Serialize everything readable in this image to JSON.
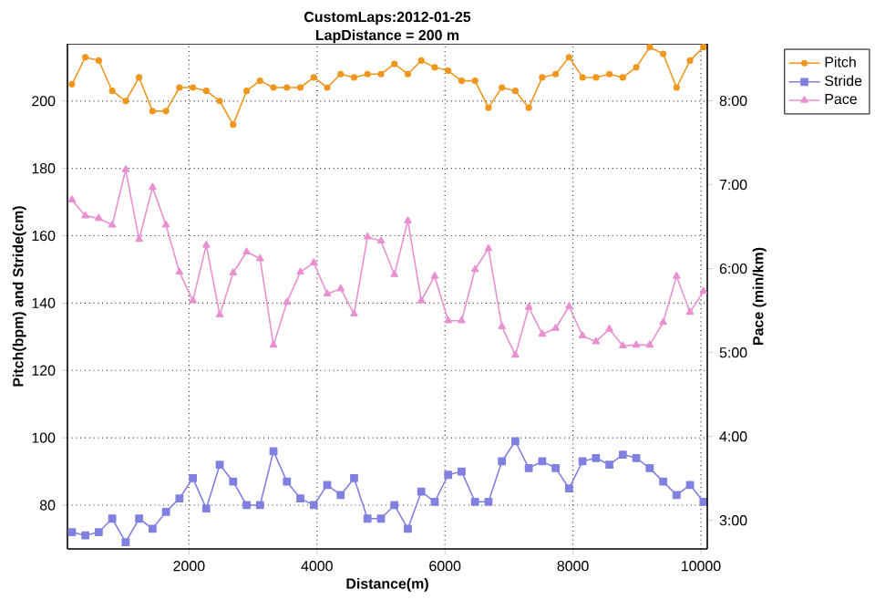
{
  "chart_data": {
    "type": "line",
    "title": "CustomLaps:2012-01-25",
    "subtitle": "LapDistance = 200 m",
    "xlabel": "Distance(m)",
    "ylabel": "Pitch(bpm) and Stride(cm)",
    "y2label": "Pace (min/km)",
    "x": [
      170,
      380,
      590,
      800,
      1010,
      1220,
      1430,
      1640,
      1850,
      2060,
      2270,
      2480,
      2690,
      2900,
      3110,
      3320,
      3530,
      3740,
      3950,
      4160,
      4370,
      4580,
      4790,
      5000,
      5210,
      5420,
      5630,
      5840,
      6050,
      6260,
      6470,
      6680,
      6890,
      7100,
      7310,
      7520,
      7730,
      7940,
      8150,
      8360,
      8570,
      8780,
      8990,
      9200,
      9410,
      9620,
      9830,
      10040
    ],
    "series": [
      {
        "name": "Pitch",
        "color": "#f0961e",
        "marker": "circle",
        "values": [
          205,
          213,
          212,
          203,
          200,
          207,
          197,
          197,
          204,
          204,
          203,
          200,
          193,
          203,
          206,
          204,
          204,
          204,
          207,
          204,
          208,
          207,
          208,
          208,
          211,
          208,
          212,
          210,
          209,
          206,
          206,
          198,
          204,
          203,
          198,
          207,
          208,
          213,
          207,
          207,
          208,
          207,
          210,
          216,
          214,
          204,
          212,
          216
        ]
      },
      {
        "name": "Stride",
        "color": "#8080e0",
        "marker": "square",
        "values": [
          72,
          71,
          72,
          76,
          69,
          76,
          73,
          78,
          82,
          88,
          79,
          92,
          87,
          80,
          80,
          96,
          87,
          82,
          80,
          86,
          83,
          88,
          76,
          76,
          80,
          73,
          84,
          81,
          89,
          90,
          81,
          81,
          93,
          99,
          91,
          93,
          91,
          85,
          93,
          94,
          92,
          95,
          94,
          91,
          87,
          83,
          86,
          81
        ]
      },
      {
        "name": "Pace",
        "color": "#e890d0",
        "marker": "triangle",
        "axis": "y2",
        "values": [
          6.82,
          6.63,
          6.6,
          6.52,
          7.18,
          6.35,
          6.97,
          6.52,
          5.96,
          5.62,
          6.28,
          5.45,
          5.95,
          6.2,
          6.12,
          5.09,
          5.6,
          5.96,
          6.07,
          5.7,
          5.76,
          5.46,
          6.38,
          6.33,
          5.93,
          6.57,
          5.62,
          5.91,
          5.38,
          5.38,
          5.99,
          6.24,
          5.31,
          4.97,
          5.54,
          5.22,
          5.29,
          5.55,
          5.2,
          5.13,
          5.28,
          5.08,
          5.09,
          5.09,
          5.36,
          5.91,
          5.48,
          5.73
        ]
      }
    ],
    "xlim": [
      100,
      10100
    ],
    "xticks": [
      2000,
      4000,
      6000,
      8000,
      10000
    ],
    "ylim": [
      67,
      217
    ],
    "yticks": [
      80,
      100,
      120,
      140,
      160,
      180,
      200
    ],
    "y2lim": [
      2.66,
      8.68
    ],
    "y2ticks": [
      {
        "value": 3,
        "label": "3:00"
      },
      {
        "value": 4,
        "label": "4:00"
      },
      {
        "value": 5,
        "label": "5:00"
      },
      {
        "value": 6,
        "label": "6:00"
      },
      {
        "value": 7,
        "label": "7:00"
      },
      {
        "value": 8,
        "label": "8:00"
      }
    ],
    "grid": true,
    "legend": "top right",
    "line_style": "solid"
  }
}
